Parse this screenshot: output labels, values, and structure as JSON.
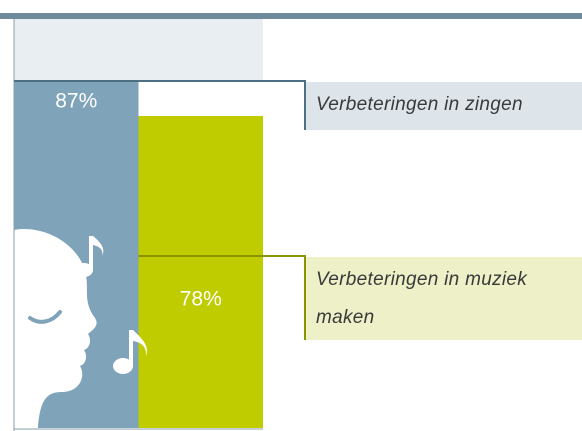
{
  "chart_data": {
    "type": "bar",
    "categories": [
      "Verbeteringen in zingen",
      "Verbeteringen in muziek maken"
    ],
    "values": [
      87,
      78
    ],
    "value_labels": [
      "87%",
      "78%"
    ],
    "colors": [
      "#7fa3b8",
      "#bfcc00"
    ],
    "label_backgrounds": [
      "#dde5ea",
      "#eef0c8"
    ],
    "ylim": [
      0,
      100
    ]
  }
}
